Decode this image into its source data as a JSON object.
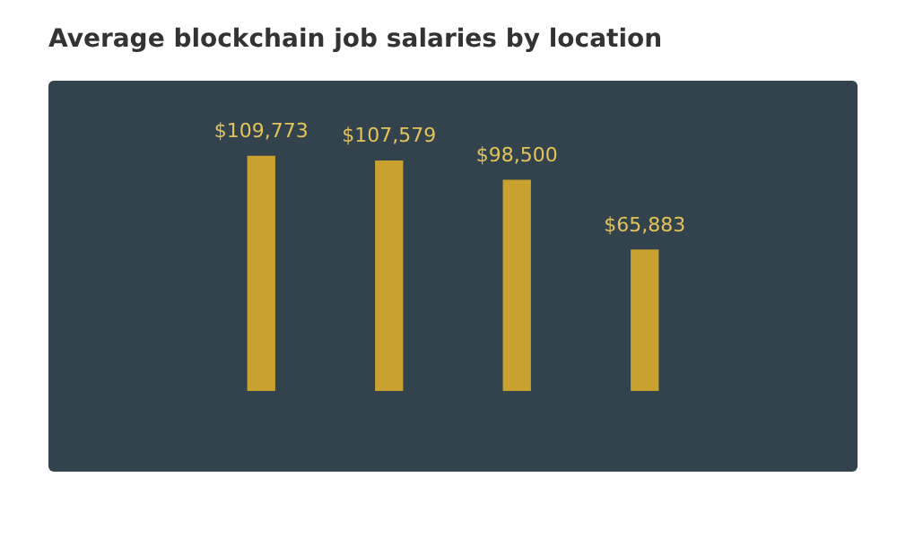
{
  "chart_data": {
    "type": "bar",
    "title": "Average blockchain job salaries by location",
    "categories": [
      null,
      null,
      null,
      null
    ],
    "values": [
      109773,
      107579,
      98500,
      65883
    ],
    "value_labels": [
      "$109,773",
      "$107,579",
      "$98,500",
      "$65,883"
    ],
    "color": "#c9a12e",
    "tick_labels": false
  }
}
